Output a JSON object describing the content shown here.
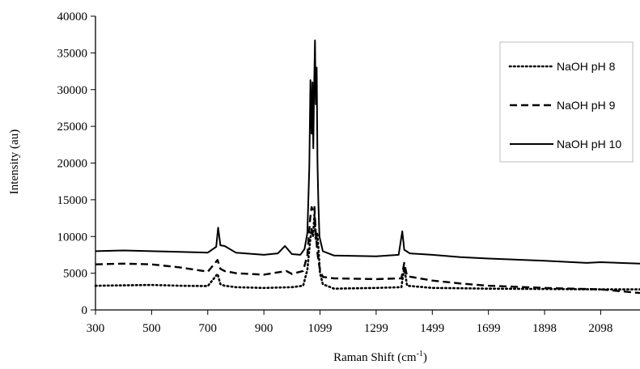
{
  "chart_data": {
    "type": "line",
    "title": "",
    "xlabel": "Raman Shift (cm",
    "xlabel_sup": "-1",
    "xlabel_suffix": ")",
    "ylabel": "Intensity (au)",
    "xlim": [
      300,
      2240
    ],
    "ylim": [
      0,
      40000
    ],
    "x_ticks": [
      {
        "value": 300,
        "label": "300"
      },
      {
        "value": 500,
        "label": "500"
      },
      {
        "value": 700,
        "label": "700"
      },
      {
        "value": 900,
        "label": "900"
      },
      {
        "value": 1100,
        "label": "1099"
      },
      {
        "value": 1300,
        "label": "1299"
      },
      {
        "value": 1500,
        "label": "1499"
      },
      {
        "value": 1700,
        "label": "1699"
      },
      {
        "value": 1900,
        "label": "1898"
      },
      {
        "value": 2100,
        "label": "2098"
      }
    ],
    "y_ticks": [
      0,
      5000,
      10000,
      15000,
      20000,
      25000,
      30000,
      35000,
      40000
    ],
    "grid": false,
    "legend_position": "top-right",
    "series": [
      {
        "name": "NaOH pH 8",
        "style": "dotted",
        "color": "#000000",
        "x": [
          300,
          400,
          500,
          600,
          700,
          735,
          745,
          760,
          800,
          900,
          1000,
          1040,
          1055,
          1065,
          1070,
          1075,
          1080,
          1085,
          1090,
          1095,
          1100,
          1110,
          1150,
          1300,
          1390,
          1400,
          1410,
          1500,
          1600,
          1700,
          1900,
          2100,
          2240
        ],
        "y": [
          3300,
          3350,
          3400,
          3300,
          3250,
          4900,
          3500,
          3300,
          3100,
          3000,
          3100,
          3300,
          5500,
          9500,
          11000,
          10000,
          13000,
          9500,
          10500,
          8000,
          5000,
          3500,
          2900,
          3000,
          3100,
          5800,
          3300,
          3000,
          2950,
          2900,
          2850,
          2800,
          2800
        ]
      },
      {
        "name": "NaOH pH 9",
        "style": "dashed",
        "color": "#000000",
        "x": [
          300,
          400,
          500,
          600,
          700,
          735,
          745,
          760,
          800,
          900,
          980,
          1000,
          1040,
          1055,
          1065,
          1070,
          1075,
          1080,
          1085,
          1090,
          1095,
          1100,
          1110,
          1150,
          1300,
          1390,
          1400,
          1410,
          1500,
          1600,
          1700,
          1900,
          2100,
          2240
        ],
        "y": [
          6200,
          6300,
          6200,
          5800,
          5200,
          6800,
          5600,
          5300,
          5000,
          4800,
          5300,
          4900,
          5300,
          7500,
          12500,
          14000,
          13500,
          14000,
          10500,
          8000,
          6500,
          5500,
          4500,
          4300,
          4200,
          4300,
          6400,
          4600,
          4000,
          3600,
          3300,
          3000,
          2800,
          2300
        ]
      },
      {
        "name": "NaOH pH 10",
        "style": "solid",
        "color": "#000000",
        "x": [
          300,
          400,
          500,
          600,
          700,
          730,
          737,
          745,
          760,
          800,
          900,
          950,
          975,
          1000,
          1030,
          1045,
          1055,
          1062,
          1066,
          1070,
          1073,
          1076,
          1079,
          1082,
          1085,
          1088,
          1091,
          1094,
          1098,
          1110,
          1150,
          1300,
          1380,
          1393,
          1400,
          1420,
          1500,
          1600,
          1650,
          1700,
          1900,
          2050,
          2100,
          2240
        ],
        "y": [
          8000,
          8100,
          8000,
          7900,
          7800,
          8600,
          11200,
          8800,
          8700,
          7800,
          7500,
          7700,
          8700,
          7600,
          7500,
          8300,
          10500,
          19500,
          31300,
          24000,
          31000,
          22000,
          30000,
          36700,
          28000,
          33000,
          20000,
          15000,
          10000,
          8000,
          7400,
          7300,
          7500,
          10700,
          8200,
          7700,
          7500,
          7200,
          7100,
          7000,
          6700,
          6400,
          6500,
          6300
        ]
      }
    ]
  }
}
